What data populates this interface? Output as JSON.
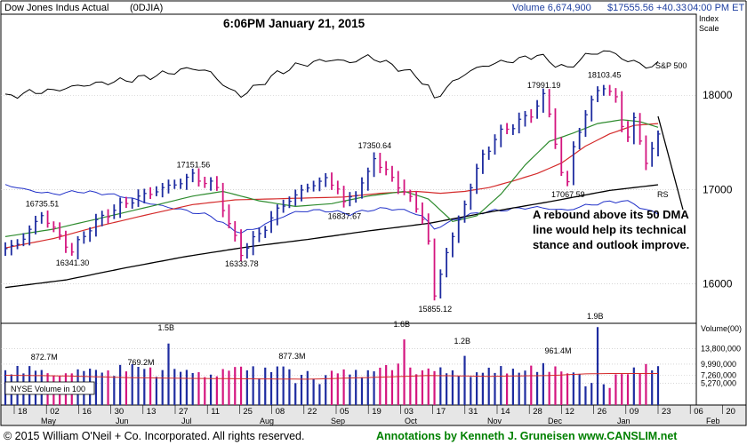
{
  "header": {
    "index_name": "Dow Jones Indus Actual",
    "symbol": "(0DJIA)",
    "timestamp": "6:06PM January 21, 2015",
    "volume": "Volume 6,674,900",
    "price": "$17555.56 +40.33",
    "time": "04:00 PM ET",
    "index_scale": [
      "Index",
      "Scale"
    ]
  },
  "colors": {
    "up_bar": "#1e2ca0",
    "down_bar": "#d4157f",
    "ma50": "#2e8b2e",
    "ma200": "#000000",
    "ma_other": "#d42a2a",
    "rs": "#2030c8",
    "sp500": "#000000",
    "footer_note": "#008000",
    "vol_avg": "#d42a2a"
  },
  "chart_data": {
    "type": "ohlc",
    "price_axis": {
      "ticks": [
        16000,
        17000,
        18000
      ],
      "labels": [
        "16000",
        "17000",
        "18000"
      ],
      "range": [
        15580,
        18860
      ]
    },
    "volume_axis": {
      "ticks": [
        "13,800,000",
        "9,990,000",
        "7,260,000",
        "5,270,000"
      ],
      "title": "Volume(00)"
    },
    "line_labels": {
      "sp500": "S&P 500",
      "rs": "RS"
    },
    "price_annotations": [
      {
        "label": "16735.51",
        "value": 16735.51
      },
      {
        "label": "16341.30",
        "value": 16341.3
      },
      {
        "label": "17151.56",
        "value": 17151.56
      },
      {
        "label": "16333.78",
        "value": 16333.78
      },
      {
        "label": "17350.64",
        "value": 17350.64
      },
      {
        "label": "16837.67",
        "value": 16837.67
      },
      {
        "label": "15855.12",
        "value": 15855.12
      },
      {
        "label": "17991.19",
        "value": 17991.19
      },
      {
        "label": "18103.45",
        "value": 18103.45
      },
      {
        "label": "17067.59",
        "value": 17067.59
      }
    ],
    "volume_annotations": [
      "872.7M",
      "769.2M",
      "1.5B",
      "877.3M",
      "1.6B",
      "1.2B",
      "961.4M",
      "1.9B"
    ],
    "volume_legend": "NYSE Volume in 100",
    "date_labels": [
      "18",
      "02",
      "16",
      "30",
      "13",
      "27",
      "11",
      "25",
      "08",
      "22",
      "05",
      "19",
      "03",
      "17",
      "31",
      "14",
      "28",
      "12",
      "26",
      "09",
      "23",
      "06",
      "20"
    ],
    "month_labels": [
      "May",
      "Jun",
      "Jul",
      "Aug",
      "Sep",
      "Oct",
      "Nov",
      "Dec",
      "Jan",
      "Feb"
    ],
    "price_path": [
      [
        0,
        16350
      ],
      [
        3,
        16480
      ],
      [
        6,
        16735.51
      ],
      [
        9,
        16500
      ],
      [
        11,
        16341.3
      ],
      [
        14,
        16600
      ],
      [
        17,
        16750
      ],
      [
        20,
        16860
      ],
      [
        23,
        16940
      ],
      [
        26,
        17010
      ],
      [
        29,
        17080
      ],
      [
        31,
        17151.56
      ],
      [
        33,
        17080
      ],
      [
        35,
        17020
      ],
      [
        37,
        16620
      ],
      [
        39,
        16333.78
      ],
      [
        41,
        16460
      ],
      [
        43,
        16600
      ],
      [
        45,
        16780
      ],
      [
        47,
        16890
      ],
      [
        49,
        16980
      ],
      [
        51,
        17060
      ],
      [
        53,
        17100
      ],
      [
        55,
        17030
      ],
      [
        56,
        16837.67
      ],
      [
        58,
        16980
      ],
      [
        60,
        17150
      ],
      [
        61,
        17350.64
      ],
      [
        63,
        17180
      ],
      [
        65,
        17050
      ],
      [
        67,
        16900
      ],
      [
        69,
        16700
      ],
      [
        70,
        16450
      ],
      [
        71,
        15855.12
      ],
      [
        72,
        16100
      ],
      [
        73,
        16350
      ],
      [
        75,
        16650
      ],
      [
        76,
        16850
      ],
      [
        77,
        17050
      ],
      [
        79,
        17350
      ],
      [
        81,
        17540
      ],
      [
        83,
        17650
      ],
      [
        85,
        17720
      ],
      [
        87,
        17800
      ],
      [
        89,
        17991.19
      ],
      [
        90,
        17800
      ],
      [
        91,
        17500
      ],
      [
        92,
        17180
      ],
      [
        93,
        17067.59
      ],
      [
        94,
        17450
      ],
      [
        96,
        17800
      ],
      [
        98,
        18050
      ],
      [
        99,
        18103.45
      ],
      [
        101,
        17950
      ],
      [
        102,
        17700
      ],
      [
        103,
        17580
      ],
      [
        104,
        17720
      ],
      [
        105,
        17510
      ],
      [
        106,
        17320
      ],
      [
        107,
        17420
      ],
      [
        108,
        17555.56
      ]
    ],
    "sp500_path": [
      [
        0,
        17980
      ],
      [
        4,
        18030
      ],
      [
        8,
        18050
      ],
      [
        12,
        18100
      ],
      [
        16,
        18130
      ],
      [
        20,
        18160
      ],
      [
        24,
        18200
      ],
      [
        28,
        18250
      ],
      [
        31,
        18290
      ],
      [
        34,
        18240
      ],
      [
        37,
        18060
      ],
      [
        39,
        18000
      ],
      [
        42,
        18110
      ],
      [
        45,
        18230
      ],
      [
        48,
        18310
      ],
      [
        51,
        18350
      ],
      [
        54,
        18380
      ],
      [
        57,
        18350
      ],
      [
        60,
        18410
      ],
      [
        62,
        18370
      ],
      [
        65,
        18290
      ],
      [
        68,
        18210
      ],
      [
        70,
        18080
      ],
      [
        71,
        17960
      ],
      [
        73,
        18080
      ],
      [
        76,
        18230
      ],
      [
        79,
        18310
      ],
      [
        82,
        18350
      ],
      [
        85,
        18380
      ],
      [
        88,
        18430
      ],
      [
        91,
        18330
      ],
      [
        93,
        18280
      ],
      [
        96,
        18420
      ],
      [
        99,
        18470
      ],
      [
        101,
        18440
      ],
      [
        103,
        18360
      ],
      [
        105,
        18340
      ],
      [
        107,
        18290
      ],
      [
        108,
        18330
      ]
    ],
    "rs_path": [
      [
        0,
        17050
      ],
      [
        4,
        16990
      ],
      [
        8,
        16950
      ],
      [
        12,
        16980
      ],
      [
        16,
        16960
      ],
      [
        20,
        16920
      ],
      [
        24,
        16850
      ],
      [
        28,
        16800
      ],
      [
        31,
        16760
      ],
      [
        34,
        16720
      ],
      [
        37,
        16600
      ],
      [
        39,
        16540
      ],
      [
        42,
        16600
      ],
      [
        45,
        16690
      ],
      [
        48,
        16760
      ],
      [
        51,
        16780
      ],
      [
        54,
        16770
      ],
      [
        57,
        16740
      ],
      [
        60,
        16780
      ],
      [
        63,
        16800
      ],
      [
        66,
        16780
      ],
      [
        69,
        16720
      ],
      [
        71,
        16580
      ],
      [
        73,
        16640
      ],
      [
        76,
        16720
      ],
      [
        79,
        16760
      ],
      [
        82,
        16780
      ],
      [
        85,
        16800
      ],
      [
        88,
        16810
      ],
      [
        91,
        16790
      ],
      [
        93,
        16780
      ],
      [
        96,
        16830
      ],
      [
        99,
        16860
      ],
      [
        102,
        16880
      ],
      [
        104,
        16850
      ],
      [
        106,
        16780
      ],
      [
        108,
        16750
      ]
    ],
    "ma50_path": [
      [
        0,
        16500
      ],
      [
        8,
        16580
      ],
      [
        16,
        16700
      ],
      [
        24,
        16820
      ],
      [
        31,
        16930
      ],
      [
        36,
        16980
      ],
      [
        42,
        16880
      ],
      [
        48,
        16820
      ],
      [
        54,
        16850
      ],
      [
        60,
        16930
      ],
      [
        66,
        16980
      ],
      [
        70,
        16900
      ],
      [
        74,
        16660
      ],
      [
        78,
        16720
      ],
      [
        82,
        16950
      ],
      [
        86,
        17260
      ],
      [
        90,
        17510
      ],
      [
        94,
        17600
      ],
      [
        98,
        17700
      ],
      [
        102,
        17740
      ],
      [
        105,
        17720
      ],
      [
        108,
        17660
      ]
    ],
    "ma_other_path": [
      [
        0,
        16380
      ],
      [
        8,
        16480
      ],
      [
        16,
        16620
      ],
      [
        24,
        16740
      ],
      [
        31,
        16840
      ],
      [
        38,
        16890
      ],
      [
        44,
        16900
      ],
      [
        50,
        16910
      ],
      [
        56,
        16920
      ],
      [
        62,
        16960
      ],
      [
        68,
        16980
      ],
      [
        72,
        16960
      ],
      [
        76,
        16980
      ],
      [
        80,
        17020
      ],
      [
        84,
        17090
      ],
      [
        88,
        17170
      ],
      [
        92,
        17280
      ],
      [
        96,
        17460
      ],
      [
        100,
        17590
      ],
      [
        104,
        17680
      ],
      [
        108,
        17700
      ]
    ],
    "ma200_path": [
      [
        0,
        15960
      ],
      [
        10,
        16040
      ],
      [
        20,
        16170
      ],
      [
        30,
        16290
      ],
      [
        40,
        16390
      ],
      [
        50,
        16470
      ],
      [
        60,
        16560
      ],
      [
        70,
        16640
      ],
      [
        80,
        16760
      ],
      [
        90,
        16870
      ],
      [
        100,
        16990
      ],
      [
        108,
        17050
      ]
    ],
    "volume_avg_path": [
      [
        0,
        7260000
      ],
      [
        10,
        7100000
      ],
      [
        20,
        6700000
      ],
      [
        30,
        6500000
      ],
      [
        40,
        6400000
      ],
      [
        50,
        6300000
      ],
      [
        60,
        6700000
      ],
      [
        70,
        7200000
      ],
      [
        80,
        7000000
      ],
      [
        90,
        7200000
      ],
      [
        96,
        7600000
      ],
      [
        100,
        7700000
      ],
      [
        108,
        7700000
      ]
    ],
    "volume_spikes": [
      {
        "i": 27,
        "value": 15000000,
        "label": "1.5B"
      },
      {
        "i": 66,
        "value": 16000000,
        "label": "1.6B"
      },
      {
        "i": 76,
        "value": 12000000,
        "label": "1.2B"
      },
      {
        "i": 98,
        "value": 19000000,
        "label": "1.9B"
      }
    ]
  },
  "note": {
    "lines": [
      "A rebound above its 50 DMA",
      "line would help its technical",
      "stance and outlook improve."
    ]
  },
  "footer": {
    "left": "© 2015  William O'Neil + Co. Incorporated. All rights reserved.",
    "right": "Annotations by Kenneth J. Gruneisen  www.CANSLIM.net"
  }
}
